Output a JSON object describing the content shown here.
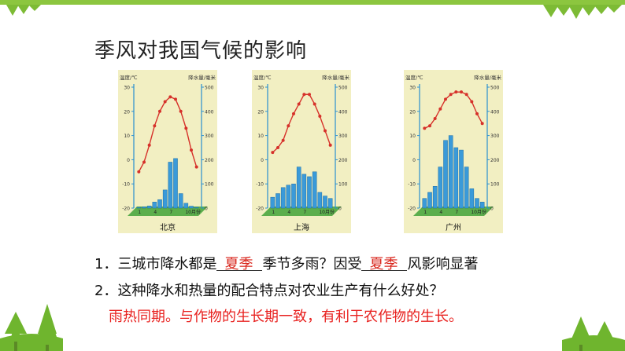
{
  "slide": {
    "title": "季风对我国气候的影响",
    "question1": {
      "prefix": "1．三城市降水都是",
      "blank1": "夏季",
      "middle": "季节多雨？因受",
      "blank2": "夏季",
      "suffix": "风影响显著"
    },
    "question2": "2．这种降水和热量的配合特点对农业生产有什么好处？",
    "answer": "雨热同期。与作物的生长期一致，有利于农作物的生长。"
  },
  "colors": {
    "accent": "#8cc63f",
    "answer": "#e8211f",
    "temp_line": "#d6312a",
    "bar": "#3a9ad9",
    "base": "#5cae4c",
    "chart_bg": "#f2efc2"
  },
  "chart_data": [
    {
      "type": "bar",
      "city": "北京",
      "ylabel_left": "温度/℃",
      "ylabel_right": "降水量/毫米",
      "left_ticks": [
        "30",
        "20",
        "10",
        "0",
        "-10",
        "-20"
      ],
      "right_ticks": [
        "500",
        "400",
        "300",
        "200",
        "100",
        "0"
      ],
      "x_ticks": [
        "1",
        "4",
        "7",
        "10月份"
      ],
      "temperature": [
        -5,
        -1,
        6,
        14,
        20,
        24,
        26,
        25,
        20,
        13,
        4,
        -3
      ],
      "precipitation": [
        3,
        5,
        9,
        25,
        35,
        75,
        190,
        205,
        60,
        20,
        8,
        3
      ]
    },
    {
      "type": "bar",
      "city": "上海",
      "ylabel_left": "温度/℃",
      "ylabel_right": "降水量/毫米",
      "left_ticks": [
        "30",
        "20",
        "10",
        "0",
        "-10",
        "-20"
      ],
      "right_ticks": [
        "500",
        "400",
        "300",
        "200",
        "100",
        "0"
      ],
      "x_ticks": [
        "1",
        "4",
        "7",
        "10月份"
      ],
      "temperature": [
        3,
        5,
        8,
        14,
        19,
        23,
        27,
        27,
        23,
        18,
        12,
        6
      ],
      "precipitation": [
        45,
        60,
        85,
        95,
        100,
        170,
        140,
        130,
        150,
        65,
        50,
        40
      ]
    },
    {
      "type": "bar",
      "city": "广州",
      "ylabel_left": "温度/℃",
      "ylabel_right": "降水量/毫米",
      "left_ticks": [
        "30",
        "20",
        "10",
        "0",
        "-10",
        "-20"
      ],
      "right_ticks": [
        "500",
        "400",
        "300",
        "200",
        "100",
        "0"
      ],
      "x_ticks": [
        "1",
        "4",
        "7",
        "10月份"
      ],
      "temperature": [
        13,
        14,
        17,
        21,
        25,
        27,
        28,
        28,
        27,
        24,
        19,
        15
      ],
      "precipitation": [
        40,
        65,
        90,
        170,
        280,
        300,
        250,
        240,
        170,
        80,
        40,
        25
      ]
    }
  ]
}
